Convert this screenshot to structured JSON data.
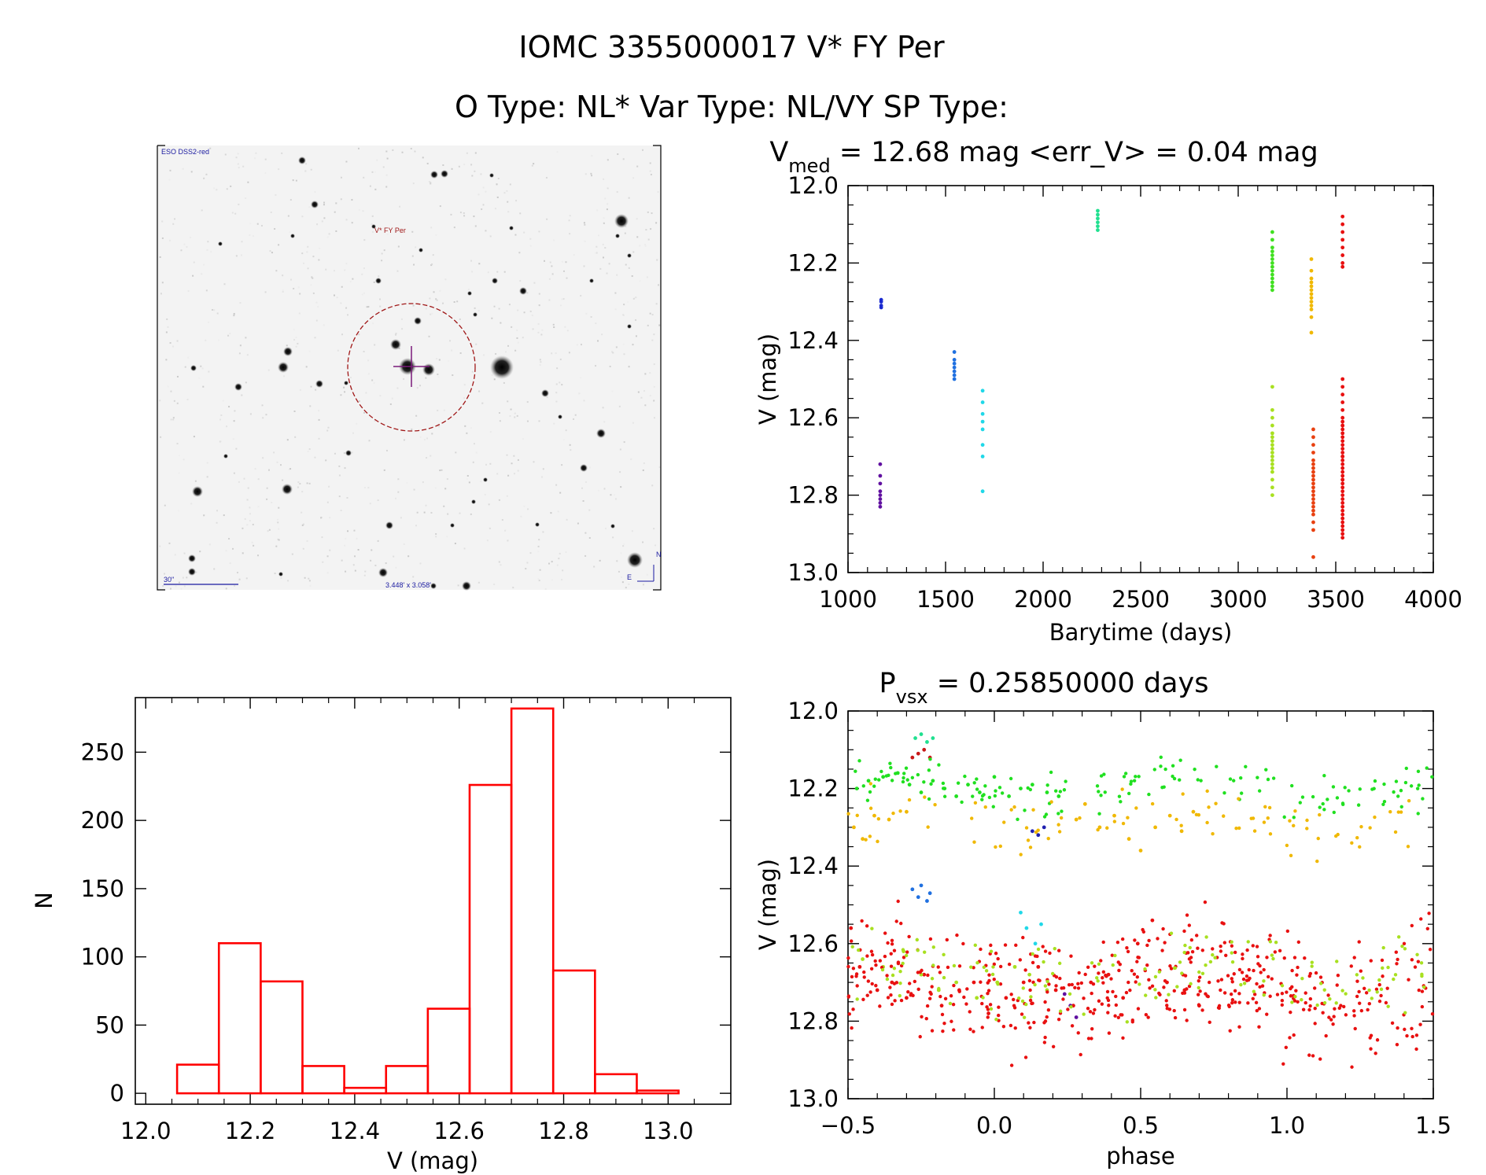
{
  "header": {
    "title_line1": "IOMC 3355000017   V* FY Per",
    "title_line2": "O Type: NL*  Var Type: NL/VY  SP Type:"
  },
  "finder": {
    "survey_label": "ESO DSS2-red",
    "target_label": "V* FY Per",
    "scale_label": "30\"",
    "fov_label": "3.448' x 3.058'",
    "north_label": "N",
    "east_label": "E",
    "colors": {
      "target": "#a01818",
      "annotation": "#1a1aa0"
    }
  },
  "lightcurve": {
    "title_main": "V",
    "title_sub": "med",
    "title_rest": " = 12.68 mag <err_V> = 0.04 mag",
    "chart_data": {
      "type": "scatter",
      "xlabel": "Barytime (days)",
      "ylabel": "V (mag)",
      "xlim": [
        1000,
        4000
      ],
      "ylim": [
        13.0,
        12.0
      ],
      "xticks": [
        "1000",
        "1500",
        "2000",
        "2500",
        "3000",
        "3500",
        "4000"
      ],
      "yticks": [
        "12.0",
        "12.2",
        "12.4",
        "12.6",
        "12.8",
        "13.0"
      ],
      "series": [
        {
          "name": "s1",
          "color": "#6010a0",
          "x": [
            1165,
            1165,
            1165,
            1165,
            1165,
            1165,
            1165,
            1165
          ],
          "y": [
            12.72,
            12.75,
            12.77,
            12.79,
            12.8,
            12.81,
            12.82,
            12.83
          ]
        },
        {
          "name": "s2",
          "color": "#1a2ad0",
          "x": [
            1170,
            1170,
            1170,
            1170
          ],
          "y": [
            12.295,
            12.3,
            12.31,
            12.315
          ]
        },
        {
          "name": "s3",
          "color": "#2070e0",
          "x": [
            1545,
            1545,
            1545,
            1545,
            1545,
            1545,
            1545
          ],
          "y": [
            12.43,
            12.45,
            12.46,
            12.47,
            12.48,
            12.49,
            12.5
          ]
        },
        {
          "name": "s4",
          "color": "#20d8e8",
          "x": [
            1690,
            1690,
            1690,
            1690,
            1690,
            1690,
            1690,
            1690
          ],
          "y": [
            12.53,
            12.56,
            12.59,
            12.61,
            12.63,
            12.67,
            12.7,
            12.79
          ]
        },
        {
          "name": "s5",
          "color": "#20e090",
          "x": [
            2280,
            2280,
            2280,
            2280,
            2280,
            2280
          ],
          "y": [
            12.065,
            12.075,
            12.085,
            12.095,
            12.105,
            12.115
          ]
        },
        {
          "name": "s6",
          "color": "#40e020",
          "x": [
            3175,
            3175,
            3175,
            3175,
            3175,
            3175,
            3175,
            3175,
            3175,
            3175,
            3175,
            3175,
            3175,
            3175
          ],
          "y": [
            12.12,
            12.14,
            12.16,
            12.17,
            12.18,
            12.19,
            12.2,
            12.21,
            12.22,
            12.23,
            12.24,
            12.25,
            12.26,
            12.27
          ]
        },
        {
          "name": "s7",
          "color": "#a8e020",
          "x": [
            3175,
            3175,
            3175,
            3175,
            3175,
            3175,
            3175,
            3175,
            3175,
            3175,
            3175,
            3175,
            3175,
            3175,
            3175,
            3175,
            3175,
            3175
          ],
          "y": [
            12.52,
            12.58,
            12.6,
            12.62,
            12.64,
            12.65,
            12.66,
            12.67,
            12.68,
            12.69,
            12.7,
            12.71,
            12.72,
            12.73,
            12.74,
            12.76,
            12.78,
            12.8
          ]
        },
        {
          "name": "s8",
          "color": "#f0b800",
          "x": [
            3375,
            3375,
            3375,
            3375,
            3375,
            3375,
            3375,
            3375,
            3375,
            3375,
            3375,
            3375,
            3375
          ],
          "y": [
            12.19,
            12.22,
            12.24,
            12.25,
            12.26,
            12.27,
            12.28,
            12.29,
            12.3,
            12.31,
            12.32,
            12.34,
            12.38
          ]
        },
        {
          "name": "s9",
          "color": "#e84010",
          "x": [
            3385,
            3385,
            3385,
            3385,
            3385,
            3385,
            3385,
            3385,
            3385,
            3385,
            3385,
            3385,
            3385,
            3385,
            3385,
            3385,
            3385,
            3385,
            3385,
            3385,
            3385,
            3385
          ],
          "y": [
            12.63,
            12.65,
            12.67,
            12.69,
            12.71,
            12.72,
            12.73,
            12.74,
            12.75,
            12.76,
            12.77,
            12.78,
            12.79,
            12.8,
            12.81,
            12.82,
            12.83,
            12.84,
            12.85,
            12.87,
            12.89,
            12.96
          ]
        },
        {
          "name": "s10",
          "color": "#e81010",
          "x": [
            3535,
            3535,
            3535,
            3535,
            3535,
            3535,
            3535,
            3535,
            3535,
            3535,
            3535,
            3535,
            3535,
            3535,
            3535,
            3535,
            3535,
            3535,
            3535,
            3535,
            3535,
            3535,
            3535,
            3535,
            3535,
            3535,
            3535,
            3535,
            3535,
            3535,
            3535,
            3535,
            3535,
            3535,
            3535,
            3535,
            3535,
            3535,
            3535,
            3535,
            3535,
            3535,
            3535,
            3535,
            3535,
            3535,
            3535,
            3535
          ],
          "y": [
            12.08,
            12.1,
            12.12,
            12.14,
            12.16,
            12.18,
            12.2,
            12.21,
            12.5,
            12.52,
            12.54,
            12.56,
            12.58,
            12.6,
            12.61,
            12.62,
            12.63,
            12.64,
            12.65,
            12.66,
            12.67,
            12.68,
            12.69,
            12.7,
            12.71,
            12.72,
            12.73,
            12.74,
            12.75,
            12.76,
            12.77,
            12.78,
            12.79,
            12.8,
            12.81,
            12.82,
            12.83,
            12.84,
            12.85,
            12.86,
            12.87,
            12.88,
            12.89,
            12.9,
            12.91,
            12.62,
            12.7,
            12.76
          ]
        }
      ]
    }
  },
  "histogram": {
    "chart_data": {
      "type": "bar",
      "xlabel": "V (mag)",
      "ylabel": "N",
      "xlim": [
        11.98,
        13.12
      ],
      "ylim": [
        -8,
        290
      ],
      "xticks": [
        "12.0",
        "12.2",
        "12.4",
        "12.6",
        "12.8",
        "13.0"
      ],
      "yticks": [
        "0",
        "50",
        "100",
        "150",
        "200",
        "250"
      ],
      "bin_edges": [
        12.06,
        12.14,
        12.22,
        12.3,
        12.38,
        12.46,
        12.54,
        12.62,
        12.7,
        12.78,
        12.86,
        12.94,
        13.02
      ],
      "values": [
        21,
        110,
        82,
        20,
        4,
        20,
        62,
        226,
        282,
        90,
        14,
        2
      ],
      "color": "#ff0000"
    }
  },
  "phased": {
    "title_main": "P",
    "title_sub": "vsx",
    "title_rest": " = 0.25850000 days",
    "chart_data": {
      "type": "scatter",
      "xlabel": "phase",
      "ylabel": "V (mag)",
      "xlim": [
        -0.5,
        1.5
      ],
      "ylim": [
        13.0,
        12.0
      ],
      "xticks": [
        "−0.5",
        "0.0",
        "0.5",
        "1.0",
        "1.5"
      ],
      "yticks": [
        "12.0",
        "12.2",
        "12.4",
        "12.6",
        "12.8",
        "13.0"
      ],
      "series": [
        {
          "name": "green",
          "color": "#20e020",
          "x": [
            -0.47,
            -0.43,
            -0.38,
            -0.33,
            -0.29,
            -0.25,
            -0.21,
            -0.17,
            -0.13,
            -0.09,
            -0.05,
            0.0,
            0.05,
            0.09,
            0.13,
            0.18,
            0.22
          ],
          "y": [
            12.2,
            12.18,
            12.17,
            12.16,
            12.19,
            12.21,
            12.18,
            12.2,
            12.22,
            12.19,
            12.21,
            12.17,
            12.22,
            12.2,
            12.19,
            12.21,
            12.22
          ]
        },
        {
          "name": "yellow",
          "color": "#f0b800",
          "x": [
            -0.48,
            -0.45,
            -0.41,
            -0.36,
            -0.3,
            0.28,
            0.31,
            0.36,
            0.41,
            0.46,
            0.5,
            0.55,
            0.6,
            0.64,
            0.68
          ],
          "y": [
            12.3,
            12.33,
            12.27,
            12.28,
            12.26,
            12.28,
            12.24,
            12.3,
            12.27,
            12.33,
            12.36,
            12.3,
            12.27,
            12.31,
            12.26
          ]
        },
        {
          "name": "red-bright",
          "color": "#e81010",
          "x": [
            -0.49,
            -0.46,
            -0.4,
            -0.35,
            -0.3,
            -0.24,
            -0.18,
            -0.12,
            -0.07,
            -0.02,
            0.04,
            0.1,
            0.15,
            0.21,
            0.27,
            0.33,
            0.39,
            0.44,
            0.49,
            0.54,
            0.59,
            0.65,
            0.7
          ],
          "y": [
            12.56,
            12.66,
            12.72,
            12.7,
            12.74,
            12.68,
            12.76,
            12.72,
            12.7,
            12.78,
            12.74,
            12.7,
            12.66,
            12.72,
            12.76,
            12.7,
            12.68,
            12.74,
            12.6,
            12.54,
            12.7,
            12.72,
            12.76
          ]
        },
        {
          "name": "yellow-green",
          "color": "#a8e020",
          "x": [
            -0.45,
            -0.38,
            -0.31,
            -0.25,
            -0.19,
            -0.13,
            -0.06,
            0.01,
            0.07,
            0.12,
            0.18
          ],
          "y": [
            12.64,
            12.66,
            12.62,
            12.68,
            12.72,
            12.7,
            12.74,
            12.7,
            12.66,
            12.68,
            12.72
          ]
        },
        {
          "name": "cyan",
          "color": "#20d8e8",
          "x": [
            0.09,
            0.11,
            0.14,
            0.16
          ],
          "y": [
            12.52,
            12.56,
            12.6,
            12.55
          ]
        },
        {
          "name": "green-top",
          "color": "#20e090",
          "x": [
            -0.27,
            -0.25,
            -0.23,
            -0.21
          ],
          "y": [
            12.07,
            12.06,
            12.08,
            12.07
          ]
        },
        {
          "name": "red-top",
          "color": "#c81818",
          "x": [
            -0.28,
            -0.26,
            -0.24,
            -0.22
          ],
          "y": [
            12.12,
            12.11,
            12.1,
            12.12
          ]
        },
        {
          "name": "blue",
          "color": "#2070e0",
          "x": [
            -0.28,
            -0.26,
            -0.25,
            -0.23,
            -0.22
          ],
          "y": [
            12.46,
            12.48,
            12.45,
            12.49,
            12.47
          ]
        },
        {
          "name": "navy",
          "color": "#2020b0",
          "x": [
            0.13,
            0.15,
            0.17
          ],
          "y": [
            12.31,
            12.32,
            12.3
          ]
        },
        {
          "name": "purple",
          "color": "#6010a0",
          "x": [
            0.24,
            0.26,
            0.28
          ],
          "y": [
            12.73,
            12.76,
            12.79
          ]
        }
      ]
    }
  }
}
